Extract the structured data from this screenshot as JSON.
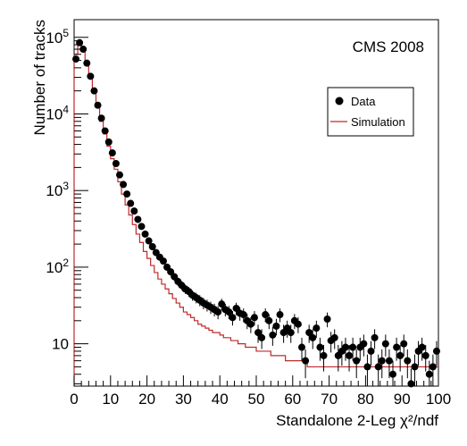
{
  "chart_data": {
    "type": "histogram",
    "annotation": "CMS 2008",
    "xlabel": "Standalone 2-Leg χ²/ndf",
    "ylabel": "Number of tracks",
    "xlim": [
      0,
      100
    ],
    "ylim": [
      2.8,
      170000
    ],
    "yscale": "log",
    "x_ticks": [
      0,
      10,
      20,
      30,
      40,
      50,
      60,
      70,
      80,
      90,
      100
    ],
    "y_ticks": [
      {
        "value": 10,
        "label": "10"
      },
      {
        "value": 100,
        "label": "10^2"
      },
      {
        "value": 1000,
        "label": "10^3"
      },
      {
        "value": 10000,
        "label": "10^4"
      },
      {
        "value": 100000,
        "label": "10^5"
      }
    ],
    "grid": false,
    "legend_position": "top-right",
    "bin_width": 1,
    "series": [
      {
        "name": "Data",
        "style": "markers-with-error-bars",
        "color": "#000000",
        "x": [
          0.5,
          1.5,
          2.5,
          3.5,
          4.5,
          5.5,
          6.5,
          7.5,
          8.5,
          9.5,
          10.5,
          11.5,
          12.5,
          13.5,
          14.5,
          15.5,
          16.5,
          17.5,
          18.5,
          19.5,
          20.5,
          21.5,
          22.5,
          23.5,
          24.5,
          25.5,
          26.5,
          27.5,
          28.5,
          29.5,
          30.5,
          31.5,
          32.5,
          33.5,
          34.5,
          35.5,
          36.5,
          37.5,
          38.5,
          39.5,
          40.5,
          41.5,
          42.5,
          43.5,
          44.5,
          45.5,
          46.5,
          47.5,
          48.5,
          49.5,
          50.5,
          51.5,
          52.5,
          53.5,
          54.5,
          55.5,
          56.5,
          57.5,
          58.5,
          59.5,
          60.5,
          61.5,
          62.5,
          63.5,
          64.5,
          65.5,
          66.5,
          67.5,
          68.5,
          69.5,
          70.5,
          71.5,
          72.5,
          73.5,
          74.5,
          75.5,
          76.5,
          77.5,
          78.5,
          79.5,
          80.5,
          81.5,
          82.5,
          83.5,
          84.5,
          85.5,
          86.5,
          87.5,
          88.5,
          89.5,
          90.5,
          91.5,
          92.5,
          93.5,
          94.5,
          95.5,
          96.5,
          97.5,
          98.5,
          99.5
        ],
        "y": [
          52000,
          85000,
          70000,
          46000,
          31000,
          20000,
          13000,
          8800,
          6000,
          4300,
          3100,
          2250,
          1600,
          1200,
          900,
          680,
          540,
          420,
          340,
          270,
          220,
          185,
          155,
          135,
          120,
          100,
          87,
          75,
          65,
          58,
          52,
          48,
          43,
          40,
          37,
          34,
          32,
          30,
          28,
          26,
          33,
          28,
          26,
          22,
          29,
          25,
          24,
          20,
          18,
          22,
          14,
          12,
          24,
          20,
          13,
          17,
          24,
          14,
          16,
          14,
          20,
          18,
          9,
          6,
          14,
          12,
          16,
          9,
          7,
          21,
          11,
          12,
          7,
          8,
          9,
          7,
          9,
          6,
          9,
          10,
          5,
          8,
          12,
          5,
          6,
          10,
          6,
          4,
          9,
          7,
          10,
          6,
          3,
          5,
          8,
          9,
          7,
          4,
          5,
          8
        ]
      },
      {
        "name": "Simulation",
        "style": "step",
        "color": "#c0282d",
        "y": [
          60000,
          80000,
          65000,
          43000,
          29000,
          19000,
          12000,
          8000,
          5500,
          3800,
          2600,
          1900,
          1300,
          900,
          650,
          480,
          360,
          270,
          210,
          160,
          130,
          105,
          85,
          70,
          60,
          52,
          45,
          39,
          34,
          30,
          26,
          24,
          22,
          20,
          18,
          17,
          16,
          15,
          14,
          14,
          13,
          12,
          12,
          11,
          11,
          10,
          10,
          9,
          9,
          9,
          8,
          8,
          8,
          8,
          7,
          7,
          7,
          7,
          6,
          6,
          6,
          6,
          6,
          6,
          5,
          5,
          5,
          5,
          5,
          5,
          5,
          5,
          5,
          5,
          5,
          5,
          5,
          5,
          5,
          5,
          5,
          5,
          5,
          5,
          5,
          5,
          5,
          5,
          5,
          5,
          5,
          5,
          5,
          5,
          5,
          5,
          5,
          5,
          5,
          5
        ]
      }
    ]
  }
}
